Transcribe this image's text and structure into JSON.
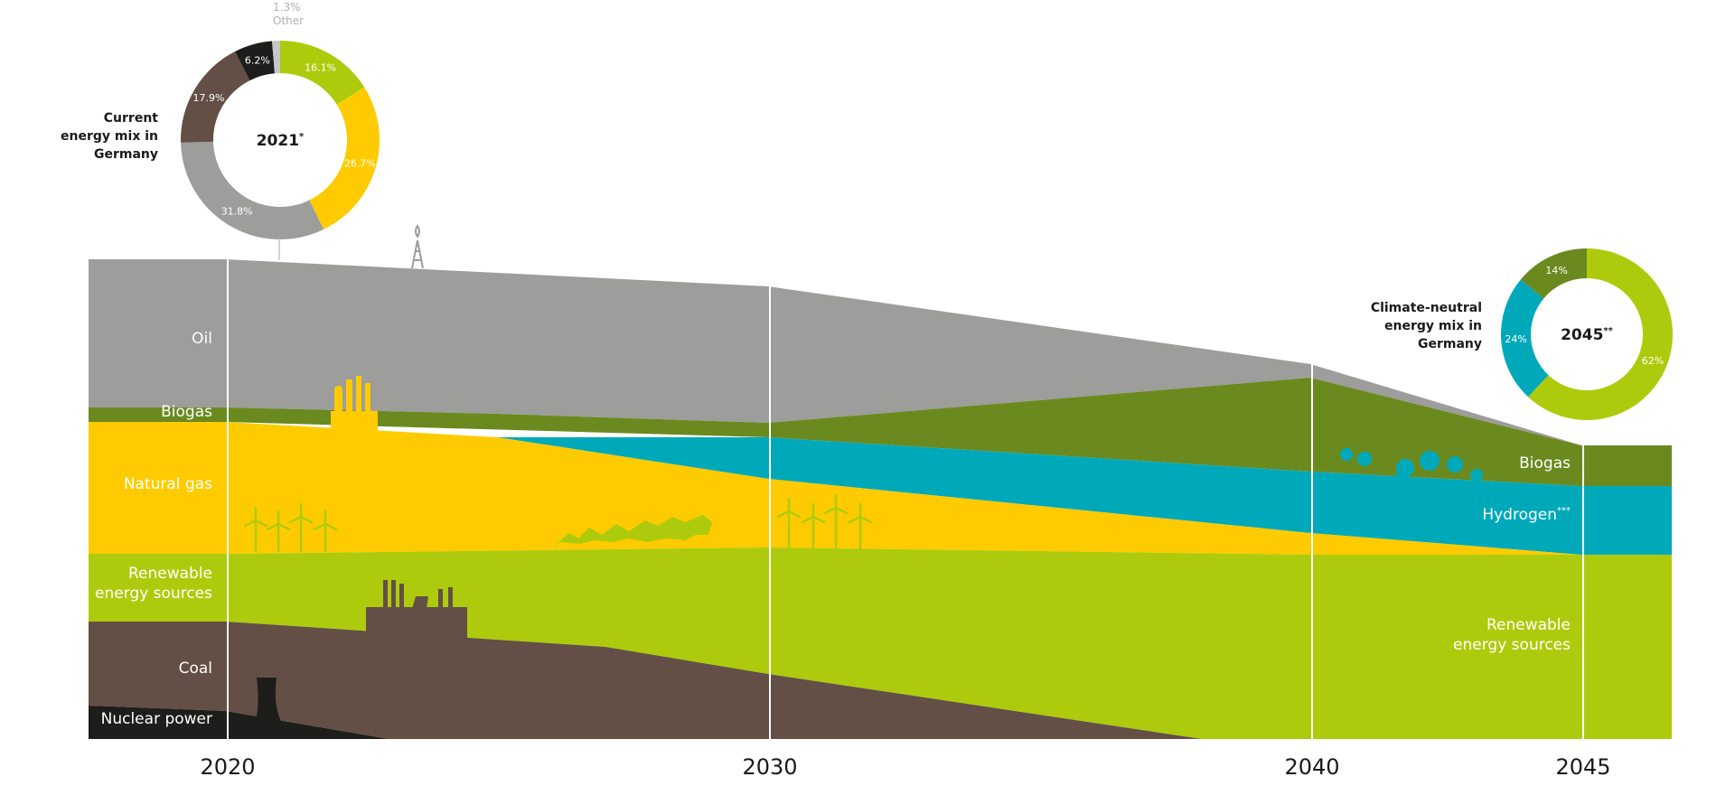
{
  "colors": {
    "oil": "#9d9d9c",
    "biogas": "#6a8a1f",
    "natural_gas": "#fecb00",
    "hydrogen": "#00a9ba",
    "renewable": "#adcb0c",
    "coal": "#634f45",
    "nuclear": "#1d1d1b",
    "other": "#c6c6c6",
    "year_line": "#ffffff"
  },
  "chart_data": {
    "type": "area",
    "x": [
      2020,
      2030,
      2040,
      2045
    ],
    "x_ticks": [
      "2020",
      "2030",
      "2040",
      "2045"
    ],
    "stacking": "stacked",
    "series_order_bottom_to_top": [
      "Nuclear power",
      "Coal",
      "Renewable energy sources",
      "Natural gas",
      "Hydrogen",
      "Biogas",
      "Oil"
    ],
    "left_labels": [
      {
        "key": "oil",
        "text": "Oil"
      },
      {
        "key": "biogas",
        "text": "Biogas"
      },
      {
        "key": "natural_gas",
        "text": "Natural gas"
      },
      {
        "key": "renewable",
        "text": [
          "Renewable",
          "energy sources"
        ]
      },
      {
        "key": "coal",
        "text": "Coal"
      },
      {
        "key": "nuclear",
        "text": "Nuclear power"
      }
    ],
    "right_labels": [
      {
        "key": "biogas",
        "text": "Biogas"
      },
      {
        "key": "hydrogen",
        "text": "Hydrogen",
        "sup": "***"
      },
      {
        "key": "renewable",
        "text": [
          "Renewable",
          "energy sources"
        ]
      }
    ],
    "donut_2021": {
      "center": "2021",
      "center_sup": "*",
      "caption": [
        "Current",
        "energy mix in",
        "Germany"
      ],
      "slices": [
        {
          "key": "renewable",
          "label": "16.1%",
          "value": 16.1
        },
        {
          "key": "natural_gas",
          "label": "26.7%",
          "value": 26.7
        },
        {
          "key": "oil",
          "label": "31.8%",
          "value": 31.8
        },
        {
          "key": "coal",
          "label": "17.9%",
          "value": 17.9
        },
        {
          "key": "nuclear",
          "label": "6.2%",
          "value": 6.2
        },
        {
          "key": "other",
          "label": "1.3%",
          "value": 1.3
        }
      ],
      "other_label": [
        "1.3%",
        "Other"
      ]
    },
    "donut_2045": {
      "center": "2045",
      "center_sup": "**",
      "caption": [
        "Climate-neutral",
        "energy mix in",
        "Germany"
      ],
      "slices": [
        {
          "key": "renewable",
          "label": "62%",
          "value": 62
        },
        {
          "key": "hydrogen",
          "label": "24%",
          "value": 24
        },
        {
          "key": "biogas",
          "label": "14%",
          "value": 14
        }
      ]
    }
  }
}
